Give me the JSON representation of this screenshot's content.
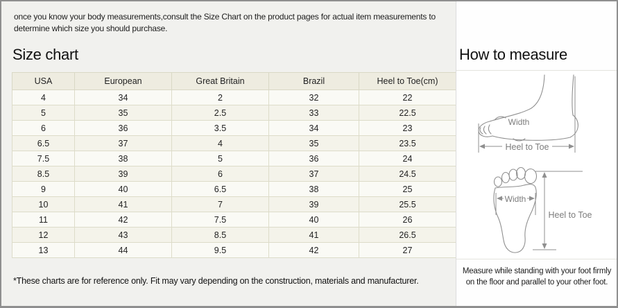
{
  "intro": {
    "text": "once you know your body measurements,consult the Size Chart on the product pages for actual item measurements to determine which size you should purchase."
  },
  "size_chart": {
    "title": "Size chart",
    "table": {
      "headers": [
        "USA",
        "European",
        "Great Britain",
        "Brazil",
        "Heel to Toe(cm)"
      ],
      "rows": [
        [
          "4",
          "34",
          "2",
          "32",
          "22"
        ],
        [
          "5",
          "35",
          "2.5",
          "33",
          "22.5"
        ],
        [
          "6",
          "36",
          "3.5",
          "34",
          "23"
        ],
        [
          "6.5",
          "37",
          "4",
          "35",
          "23.5"
        ],
        [
          "7.5",
          "38",
          "5",
          "36",
          "24"
        ],
        [
          "8.5",
          "39",
          "6",
          "37",
          "24.5"
        ],
        [
          "9",
          "40",
          "6.5",
          "38",
          "25"
        ],
        [
          "10",
          "41",
          "7",
          "39",
          "25.5"
        ],
        [
          "11",
          "42",
          "7.5",
          "40",
          "26"
        ],
        [
          "12",
          "43",
          "8.5",
          "41",
          "26.5"
        ],
        [
          "13",
          "44",
          "9.5",
          "42",
          "27"
        ]
      ]
    },
    "footnote": "*These charts are for reference only. Fit may vary depending on the construction, materials and manufacturer."
  },
  "how_to_measure": {
    "title": "How to measure",
    "side_view": {
      "width_label": "Width",
      "heel_to_toe_label": "Heel to Toe"
    },
    "top_view": {
      "width_label": "Width",
      "heel_to_toe_label": "Heel to Toe"
    },
    "instruction": "Measure while standing with your foot firmly on the floor and parallel to your other foot."
  },
  "colors": {
    "panel_background": "#f1f1ee",
    "right_panel_background": "#ffffff",
    "table_header_background": "#eeece0",
    "table_border": "#d9d8c5",
    "outer_border": "#8f8f8f",
    "diagram_stroke": "#8f8f8f",
    "text": "#1c1c1c"
  }
}
